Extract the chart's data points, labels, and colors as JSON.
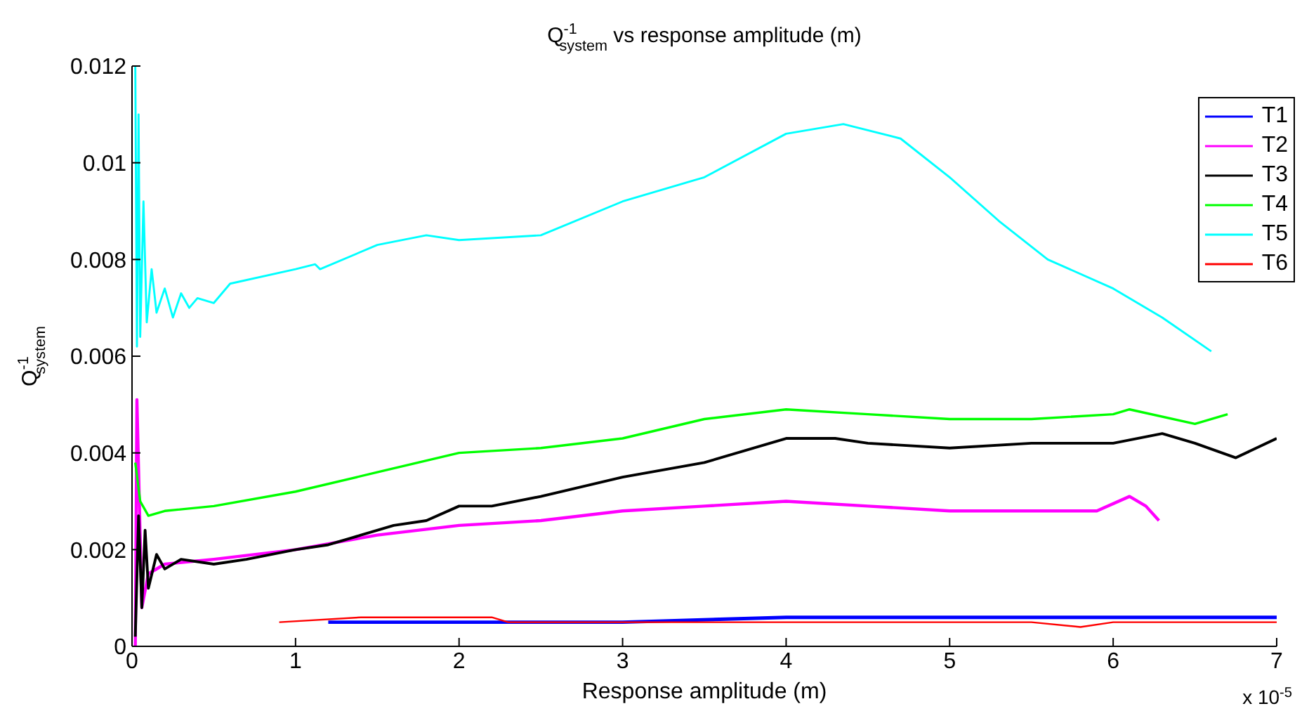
{
  "chart_data": {
    "type": "line",
    "title": "Q$^{-1}$$_{system}$ vs response amplitude (m)",
    "xlabel": "Response amplitude (m)",
    "ylabel": "Q$^{-1}$$_{system}$",
    "annotations": [
      "x 10$^{-5}$"
    ],
    "xlim": [
      0,
      7
    ],
    "xticks": [
      0,
      1,
      2,
      3,
      4,
      5,
      6,
      7
    ],
    "ylim": [
      0,
      0.012
    ],
    "yticks": [
      0,
      0.002,
      0.004,
      0.006,
      0.008,
      0.01,
      0.012
    ],
    "grid": false,
    "legend": "top right",
    "marker": "none",
    "line_style": "solid",
    "series": [
      {
        "name": "T1",
        "color": "#0000ff",
        "x": [
          1.2,
          2.2,
          3.0,
          4.0,
          4.6,
          5.0,
          6.0,
          7.0
        ],
        "values": [
          0.0005,
          0.0005,
          0.0005,
          0.0006,
          0.0006,
          0.0006,
          0.0006,
          0.0006
        ]
      },
      {
        "name": "T2",
        "color": "#ff00ff",
        "x": [
          0.02,
          0.03,
          0.06,
          0.1,
          0.2,
          0.5,
          1.0,
          1.5,
          2.0,
          2.5,
          3.0,
          3.5,
          4.0,
          4.5,
          5.0,
          5.5,
          5.9,
          6.1,
          6.2,
          6.28
        ],
        "values": [
          0.0,
          0.0051,
          0.0008,
          0.0015,
          0.0017,
          0.0018,
          0.002,
          0.0023,
          0.0025,
          0.0026,
          0.0028,
          0.0029,
          0.003,
          0.0029,
          0.0028,
          0.0028,
          0.0028,
          0.0031,
          0.0029,
          0.0026
        ]
      },
      {
        "name": "T3",
        "color": "#000000",
        "x": [
          0.02,
          0.04,
          0.06,
          0.08,
          0.1,
          0.15,
          0.2,
          0.3,
          0.5,
          0.7,
          1.0,
          1.2,
          1.4,
          1.6,
          1.8,
          2.0,
          2.2,
          2.5,
          3.0,
          3.5,
          4.0,
          4.3,
          4.5,
          5.0,
          5.5,
          6.0,
          6.3,
          6.5,
          6.75,
          7.0
        ],
        "values": [
          0.0002,
          0.0027,
          0.0008,
          0.0024,
          0.0012,
          0.0019,
          0.0016,
          0.0018,
          0.0017,
          0.0018,
          0.002,
          0.0021,
          0.0023,
          0.0025,
          0.0026,
          0.0029,
          0.0029,
          0.0031,
          0.0035,
          0.0038,
          0.0043,
          0.0043,
          0.0042,
          0.0041,
          0.0042,
          0.0042,
          0.0044,
          0.0042,
          0.0039,
          0.0043
        ]
      },
      {
        "name": "T4",
        "color": "#00ff00",
        "x": [
          0.02,
          0.05,
          0.1,
          0.2,
          0.5,
          1.0,
          1.5,
          2.0,
          2.5,
          3.0,
          3.5,
          4.0,
          4.5,
          5.0,
          5.5,
          6.0,
          6.1,
          6.5,
          6.7
        ],
        "values": [
          0.0038,
          0.003,
          0.0027,
          0.0028,
          0.0029,
          0.0032,
          0.0036,
          0.004,
          0.0041,
          0.0043,
          0.0047,
          0.0049,
          0.0048,
          0.0047,
          0.0047,
          0.0048,
          0.0049,
          0.0046,
          0.0048
        ]
      },
      {
        "name": "T5",
        "color": "#00ffff",
        "x": [
          0.02,
          0.03,
          0.04,
          0.05,
          0.07,
          0.09,
          0.12,
          0.15,
          0.2,
          0.25,
          0.3,
          0.35,
          0.4,
          0.5,
          0.55,
          0.6,
          1.0,
          1.12,
          1.15,
          1.5,
          1.8,
          2.0,
          2.5,
          3.0,
          3.5,
          4.0,
          4.35,
          4.7,
          5.0,
          5.3,
          5.6,
          6.0,
          6.3,
          6.6
        ],
        "values": [
          0.012,
          0.0062,
          0.011,
          0.0064,
          0.0092,
          0.0067,
          0.0078,
          0.0069,
          0.0074,
          0.0068,
          0.0073,
          0.007,
          0.0072,
          0.0071,
          0.0073,
          0.0075,
          0.0078,
          0.0079,
          0.0078,
          0.0083,
          0.0085,
          0.0084,
          0.0085,
          0.0092,
          0.0097,
          0.0106,
          0.0108,
          0.0105,
          0.0097,
          0.0088,
          0.008,
          0.0074,
          0.0068,
          0.0061
        ]
      },
      {
        "name": "T6",
        "color": "#ff0000",
        "x": [
          0.9,
          1.4,
          2.2,
          2.3,
          3.0,
          4.0,
          5.0,
          5.5,
          5.8,
          6.0,
          7.0
        ],
        "values": [
          0.0005,
          0.0006,
          0.0006,
          0.0005,
          0.0005,
          0.0005,
          0.0005,
          0.0005,
          0.0004,
          0.0005,
          0.0005
        ]
      }
    ]
  }
}
